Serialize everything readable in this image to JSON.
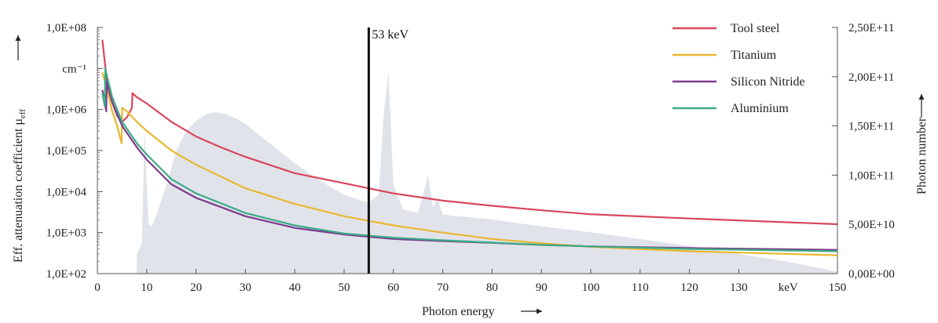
{
  "chart_data": {
    "type": "line",
    "title": "",
    "xlabel": "Photon energy",
    "ylabel_left": "Eff. attenuation coefficient μ",
    "ylabel_left_sub": "eff",
    "ylabel_right": "Photon number",
    "x_unit_label": "keV",
    "y_unit_label": "cm⁻¹",
    "xlim": [
      0,
      150
    ],
    "ylim_left": [
      100,
      100000000
    ],
    "yscale_left": "log",
    "ylim_right": [
      0,
      250000000000
    ],
    "x_ticks": [
      0,
      10,
      20,
      30,
      40,
      50,
      60,
      70,
      80,
      90,
      100,
      110,
      120,
      130,
      150
    ],
    "x_tick_labels": [
      "0",
      "10",
      "20",
      "30",
      "40",
      "50",
      "60",
      "70",
      "80",
      "90",
      "100",
      "110",
      "120",
      "130",
      "150"
    ],
    "y_left_ticks": [
      100,
      1000,
      10000,
      100000,
      1000000,
      100000000
    ],
    "y_left_tick_labels": [
      "1,0E+02",
      "1,0E+03",
      "1,0E+04",
      "1,0E+05",
      "1,0E+06",
      "1,0E+08"
    ],
    "y_right_ticks": [
      0,
      50000000000,
      100000000000,
      150000000000,
      200000000000,
      250000000000
    ],
    "y_right_tick_labels": [
      "0,00E+00",
      "5,00E+10",
      "1,00E+11",
      "1,50E+11",
      "2,00E+11",
      "2,50E+11"
    ],
    "grid": false,
    "legend_position": "top-right",
    "annotation": {
      "x": 55,
      "label": "53 keV"
    },
    "series": [
      {
        "name": "Tool steel",
        "color": "#d9465a",
        "x": [
          1,
          2,
          3,
          4,
          5,
          6,
          7,
          7.1,
          8,
          10,
          15,
          20,
          25,
          30,
          40,
          50,
          60,
          70,
          80,
          90,
          100,
          120,
          150
        ],
        "y": [
          50000000,
          4000000,
          1500000,
          700000,
          500000,
          650000,
          1100000,
          2500000,
          2000000,
          1400000,
          500000,
          220000,
          120000,
          70000,
          28000,
          16000,
          9000,
          6000,
          4500,
          3500,
          2800,
          2200,
          1600
        ]
      },
      {
        "name": "Titanium",
        "color": "#e8b830",
        "x": [
          1,
          2,
          3,
          4,
          4.9,
          5,
          6,
          8,
          10,
          15,
          20,
          30,
          40,
          50,
          60,
          70,
          80,
          90,
          100,
          120,
          150
        ],
        "y": [
          8000000,
          3000000,
          900000,
          400000,
          150000,
          1100000,
          900000,
          500000,
          300000,
          100000,
          45000,
          12000,
          5000,
          2500,
          1500,
          1000,
          700,
          550,
          450,
          350,
          280
        ]
      },
      {
        "name": "Silicon Nitride",
        "color": "#7c3b8c",
        "x": [
          1,
          1.8,
          1.9,
          2,
          3,
          5,
          8,
          10,
          15,
          20,
          30,
          40,
          50,
          60,
          70,
          80,
          90,
          100,
          120,
          150
        ],
        "y": [
          3000000,
          900000,
          5000000,
          4000000,
          1500000,
          400000,
          120000,
          60000,
          15000,
          7000,
          2500,
          1300,
          900,
          700,
          620,
          560,
          500,
          460,
          420,
          380
        ]
      },
      {
        "name": "Aluminium",
        "color": "#3cab86",
        "x": [
          1,
          1.5,
          1.6,
          2,
          3,
          5,
          8,
          10,
          15,
          20,
          30,
          40,
          50,
          60,
          70,
          80,
          90,
          100,
          120,
          150
        ],
        "y": [
          2500000,
          1200000,
          10000000,
          6000000,
          2000000,
          500000,
          150000,
          80000,
          20000,
          9000,
          3000,
          1500,
          950,
          750,
          650,
          570,
          500,
          460,
          400,
          350
        ]
      }
    ],
    "background_spectrum": {
      "name": "photon spectrum",
      "color": "#e1e3ea",
      "axis": "right",
      "x": [
        8,
        9,
        9.6,
        10,
        10.4,
        11,
        12,
        14,
        16,
        18,
        20,
        22,
        24,
        26,
        28,
        30,
        35,
        40,
        45,
        50,
        55,
        57,
        58,
        59,
        60,
        62,
        65,
        66,
        67,
        68,
        69,
        70,
        80,
        90,
        100,
        110,
        120,
        130,
        140,
        150
      ],
      "y": [
        20000000000,
        30000000000,
        150000000000,
        90000000000,
        50000000000,
        48000000000,
        60000000000,
        90000000000,
        125000000000,
        145000000000,
        155000000000,
        162000000000,
        164000000000,
        162000000000,
        158000000000,
        152000000000,
        132000000000,
        112000000000,
        95000000000,
        80000000000,
        72000000000,
        80000000000,
        160000000000,
        205000000000,
        90000000000,
        65000000000,
        62000000000,
        80000000000,
        100000000000,
        68000000000,
        75000000000,
        60000000000,
        55000000000,
        48000000000,
        42000000000,
        35000000000,
        28000000000,
        20000000000,
        12000000000,
        2000000000
      ]
    }
  }
}
